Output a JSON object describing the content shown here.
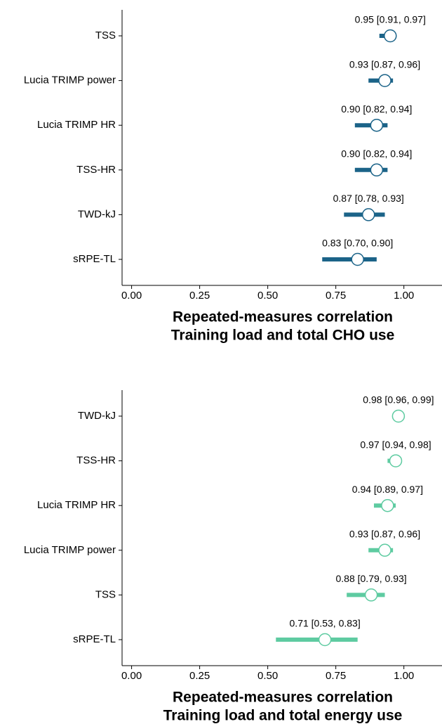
{
  "chart_data": [
    {
      "type": "forest",
      "categories": [
        "TSS",
        "Lucia TRIMP power",
        "Lucia TRIMP HR",
        "TSS-HR",
        "TWD-kJ",
        "sRPE-TL"
      ],
      "values": [
        0.95,
        0.93,
        0.9,
        0.9,
        0.87,
        0.83
      ],
      "lower": [
        0.91,
        0.87,
        0.82,
        0.82,
        0.78,
        0.7
      ],
      "upper": [
        0.97,
        0.96,
        0.94,
        0.94,
        0.93,
        0.9
      ],
      "value_labels": [
        "0.95 [0.91, 0.97]",
        "0.93 [0.87, 0.96]",
        "0.90 [0.82, 0.94]",
        "0.90 [0.82, 0.94]",
        "0.87 [0.78, 0.93]",
        "0.83 [0.70, 0.90]"
      ],
      "color": "#1b6388",
      "xlim": [
        -0.035,
        1.14
      ],
      "xticks": [
        {
          "value": 0,
          "label": "0.00"
        },
        {
          "value": 0.25,
          "label": "0.25"
        },
        {
          "value": 0.5,
          "label": "0.50"
        },
        {
          "value": 0.75,
          "label": "0.75"
        },
        {
          "value": 1,
          "label": "1.00"
        }
      ],
      "xlabel": [
        "Repeated-measures correlation",
        "Training load and total CHO use"
      ]
    },
    {
      "type": "forest",
      "categories": [
        "TWD-kJ",
        "TSS-HR",
        "Lucia TRIMP HR",
        "Lucia TRIMP power",
        "TSS",
        "sRPE-TL"
      ],
      "values": [
        0.98,
        0.97,
        0.94,
        0.93,
        0.88,
        0.71
      ],
      "lower": [
        0.96,
        0.94,
        0.89,
        0.87,
        0.79,
        0.53
      ],
      "upper": [
        0.99,
        0.98,
        0.97,
        0.96,
        0.93,
        0.83
      ],
      "value_labels": [
        "0.98 [0.96, 0.99]",
        "0.97 [0.94, 0.98]",
        "0.94 [0.89, 0.97]",
        "0.93 [0.87, 0.96]",
        "0.88 [0.79, 0.93]",
        "0.71 [0.53, 0.83]"
      ],
      "color": "#5ecba1",
      "xlim": [
        -0.035,
        1.14
      ],
      "xticks": [
        {
          "value": 0,
          "label": "0.00"
        },
        {
          "value": 0.25,
          "label": "0.25"
        },
        {
          "value": 0.5,
          "label": "0.50"
        },
        {
          "value": 0.75,
          "label": "0.75"
        },
        {
          "value": 1,
          "label": "1.00"
        }
      ],
      "xlabel": [
        "Repeated-measures correlation",
        "Training load and total energy use"
      ]
    }
  ]
}
